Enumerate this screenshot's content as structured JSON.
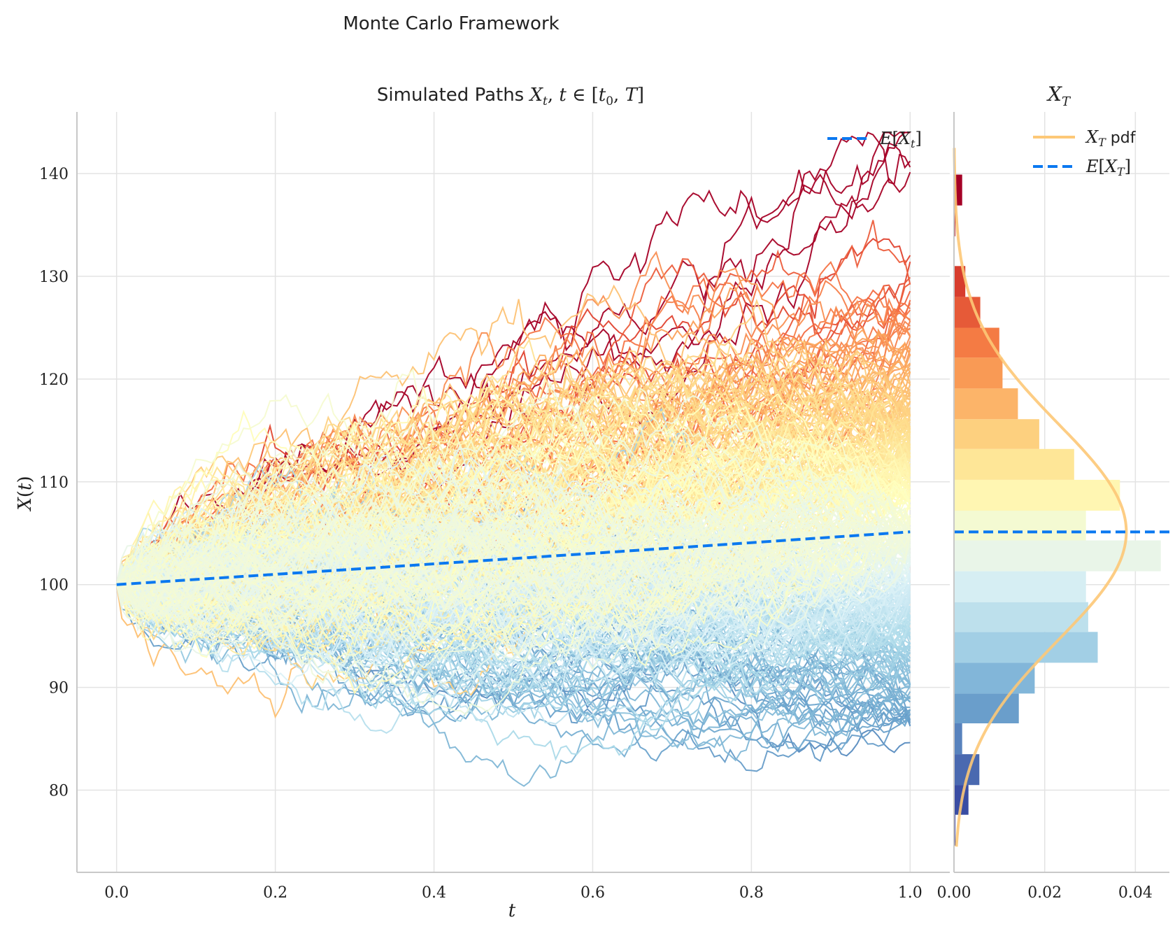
{
  "figure": {
    "suptitle": "Monte Carlo Framework"
  },
  "chart_data": [
    {
      "type": "line",
      "title": "Simulated Paths X_t, t ∈ [t_0, T]",
      "xlabel": "t",
      "ylabel": "X(t)",
      "xlim": [
        -0.05,
        1.05
      ],
      "ylim": [
        72,
        146
      ],
      "x_ticks": [
        "0.0",
        "0.2",
        "0.4",
        "0.6",
        "0.8",
        "1.0"
      ],
      "y_ticks": [
        "80",
        "90",
        "100",
        "110",
        "120",
        "130",
        "140"
      ],
      "grid": true,
      "legend": {
        "position": "top-right",
        "entries": [
          "E[X_t]"
        ]
      },
      "paths": {
        "count": 400,
        "x_start": 0.0,
        "x_end": 1.0,
        "start_value": 100,
        "terminal_range": [
          75.5,
          140.5
        ],
        "colormap": "RdYlBu (reversed; colored by terminal value)"
      },
      "series": [
        {
          "name": "E[X_t]",
          "x": [
            0,
            0.25,
            0.5,
            0.75,
            1.0
          ],
          "values": [
            100,
            101.25,
            102.53,
            103.82,
            105.13
          ],
          "color": "#0a78f0",
          "style": "dashed"
        }
      ]
    },
    {
      "type": "bar",
      "orientation": "horizontal",
      "title": "X_T",
      "xlim": [
        0,
        0.0475
      ],
      "x_ticks": [
        "0.00",
        "0.02",
        "0.04"
      ],
      "ylim": [
        72,
        146
      ],
      "grid": true,
      "legend": {
        "position": "top-right",
        "entries": [
          "X_T pdf",
          "E[X_T]"
        ]
      },
      "bins": [
        {
          "y0": 74.6,
          "y1": 77.6,
          "density": 0.0003,
          "color": "#313695"
        },
        {
          "y0": 77.6,
          "y1": 80.5,
          "density": 0.0032,
          "color": "#3a4da3"
        },
        {
          "y0": 80.5,
          "y1": 83.5,
          "density": 0.0056,
          "color": "#4a69b0"
        },
        {
          "y0": 83.5,
          "y1": 86.5,
          "density": 0.0018,
          "color": "#5882bd"
        },
        {
          "y0": 86.5,
          "y1": 89.4,
          "density": 0.0143,
          "color": "#6a9ecb"
        },
        {
          "y0": 89.4,
          "y1": 92.4,
          "density": 0.0178,
          "color": "#82b6d9"
        },
        {
          "y0": 92.4,
          "y1": 95.4,
          "density": 0.0317,
          "color": "#a2cfe5"
        },
        {
          "y0": 95.4,
          "y1": 98.3,
          "density": 0.0296,
          "color": "#bde0ec"
        },
        {
          "y0": 98.3,
          "y1": 101.3,
          "density": 0.0291,
          "color": "#d6eef3"
        },
        {
          "y0": 101.3,
          "y1": 104.3,
          "density": 0.0456,
          "color": "#e9f5e8"
        },
        {
          "y0": 104.3,
          "y1": 107.2,
          "density": 0.0291,
          "color": "#f4fad2"
        },
        {
          "y0": 107.2,
          "y1": 110.2,
          "density": 0.0366,
          "color": "#fff6b2"
        },
        {
          "y0": 110.2,
          "y1": 113.2,
          "density": 0.0265,
          "color": "#fee697"
        },
        {
          "y0": 113.2,
          "y1": 116.1,
          "density": 0.0188,
          "color": "#fdd07f"
        },
        {
          "y0": 116.1,
          "y1": 119.1,
          "density": 0.0141,
          "color": "#fcb469"
        },
        {
          "y0": 119.1,
          "y1": 122.1,
          "density": 0.0107,
          "color": "#f99a55"
        },
        {
          "y0": 122.1,
          "y1": 125.0,
          "density": 0.01,
          "color": "#f47b44"
        },
        {
          "y0": 125.0,
          "y1": 128.0,
          "density": 0.0058,
          "color": "#e65a38"
        },
        {
          "y0": 128.0,
          "y1": 131.0,
          "density": 0.0025,
          "color": "#d73d2e"
        },
        {
          "y0": 131.0,
          "y1": 133.9,
          "density": 0.0,
          "color": "#c52b2a"
        },
        {
          "y0": 133.9,
          "y1": 136.9,
          "density": 0.0003,
          "color": "#b91c27"
        },
        {
          "y0": 136.9,
          "y1": 139.9,
          "density": 0.0018,
          "color": "#a50026"
        }
      ],
      "pdf": {
        "name": "X_T pdf",
        "color": "#fdc877",
        "mean": 105.13,
        "std": 10.5,
        "y_range": [
          74.5,
          142.5
        ]
      },
      "mean_line": {
        "name": "E[X_T]",
        "value": 105.13,
        "color": "#0a78f0",
        "style": "dashed"
      }
    }
  ]
}
